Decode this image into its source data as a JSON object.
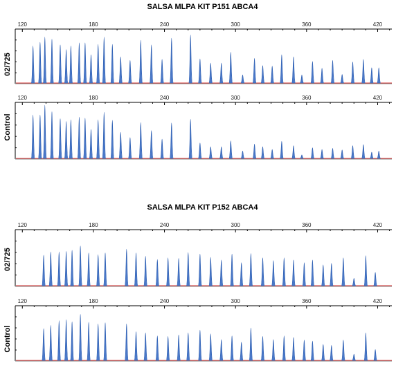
{
  "titles": [
    "SALSA MLPA KIT P151 ABCA4",
    "SALSA MLPA KIT P152 ABCA4"
  ],
  "colors": {
    "peak": "#4a78c8",
    "peak_edge": "#2a5cb0",
    "baseline": "#d83030",
    "axis": "#000000"
  },
  "chart_data": [
    {
      "type": "line",
      "panel_label": "02/725",
      "xlabel": "",
      "ylabel": "02/725",
      "xlim": [
        114,
        432
      ],
      "ylim": [
        0,
        100
      ],
      "xticks": [
        120,
        180,
        240,
        300,
        360,
        420
      ],
      "grid": false,
      "peaks": [
        {
          "x": 129,
          "y": 73
        },
        {
          "x": 135,
          "y": 80
        },
        {
          "x": 139,
          "y": 90
        },
        {
          "x": 145,
          "y": 86
        },
        {
          "x": 152,
          "y": 75
        },
        {
          "x": 157,
          "y": 66
        },
        {
          "x": 161,
          "y": 73
        },
        {
          "x": 168,
          "y": 79
        },
        {
          "x": 173,
          "y": 79
        },
        {
          "x": 178,
          "y": 56
        },
        {
          "x": 184,
          "y": 76
        },
        {
          "x": 189,
          "y": 90
        },
        {
          "x": 196,
          "y": 76
        },
        {
          "x": 203,
          "y": 52
        },
        {
          "x": 211,
          "y": 45
        },
        {
          "x": 220,
          "y": 84
        },
        {
          "x": 229,
          "y": 75
        },
        {
          "x": 238,
          "y": 47
        },
        {
          "x": 246,
          "y": 88
        },
        {
          "x": 262,
          "y": 94
        },
        {
          "x": 270,
          "y": 48
        },
        {
          "x": 279,
          "y": 40
        },
        {
          "x": 288,
          "y": 40
        },
        {
          "x": 296,
          "y": 61
        },
        {
          "x": 306,
          "y": 17
        },
        {
          "x": 316,
          "y": 49
        },
        {
          "x": 323,
          "y": 35
        },
        {
          "x": 331,
          "y": 34
        },
        {
          "x": 339,
          "y": 56
        },
        {
          "x": 349,
          "y": 52
        },
        {
          "x": 356,
          "y": 17
        },
        {
          "x": 365,
          "y": 43
        },
        {
          "x": 373,
          "y": 30
        },
        {
          "x": 382,
          "y": 45
        },
        {
          "x": 390,
          "y": 18
        },
        {
          "x": 399,
          "y": 42
        },
        {
          "x": 408,
          "y": 47
        },
        {
          "x": 415,
          "y": 31
        },
        {
          "x": 421,
          "y": 31
        }
      ]
    },
    {
      "type": "line",
      "panel_label": "Control",
      "xlabel": "",
      "ylabel": "Control",
      "xlim": [
        114,
        432
      ],
      "ylim": [
        0,
        100
      ],
      "xticks": [
        120,
        180,
        240,
        300,
        360,
        420
      ],
      "grid": false,
      "peaks": [
        {
          "x": 129,
          "y": 82
        },
        {
          "x": 135,
          "y": 82
        },
        {
          "x": 139,
          "y": 100
        },
        {
          "x": 145,
          "y": 88
        },
        {
          "x": 152,
          "y": 75
        },
        {
          "x": 157,
          "y": 70
        },
        {
          "x": 161,
          "y": 73
        },
        {
          "x": 168,
          "y": 78
        },
        {
          "x": 173,
          "y": 76
        },
        {
          "x": 178,
          "y": 55
        },
        {
          "x": 184,
          "y": 73
        },
        {
          "x": 189,
          "y": 87
        },
        {
          "x": 196,
          "y": 72
        },
        {
          "x": 203,
          "y": 50
        },
        {
          "x": 211,
          "y": 40
        },
        {
          "x": 220,
          "y": 68
        },
        {
          "x": 229,
          "y": 53
        },
        {
          "x": 238,
          "y": 37
        },
        {
          "x": 246,
          "y": 67
        },
        {
          "x": 262,
          "y": 74
        },
        {
          "x": 270,
          "y": 30
        },
        {
          "x": 279,
          "y": 23
        },
        {
          "x": 288,
          "y": 23
        },
        {
          "x": 296,
          "y": 34
        },
        {
          "x": 306,
          "y": 15
        },
        {
          "x": 316,
          "y": 28
        },
        {
          "x": 323,
          "y": 23
        },
        {
          "x": 331,
          "y": 18
        },
        {
          "x": 339,
          "y": 33
        },
        {
          "x": 349,
          "y": 25
        },
        {
          "x": 356,
          "y": 8
        },
        {
          "x": 365,
          "y": 21
        },
        {
          "x": 373,
          "y": 18
        },
        {
          "x": 382,
          "y": 20
        },
        {
          "x": 390,
          "y": 17
        },
        {
          "x": 399,
          "y": 25
        },
        {
          "x": 408,
          "y": 27
        },
        {
          "x": 415,
          "y": 13
        },
        {
          "x": 421,
          "y": 15
        }
      ]
    },
    {
      "type": "line",
      "panel_label": "02/725",
      "xlabel": "",
      "ylabel": "02/725",
      "xlim": [
        114,
        432
      ],
      "ylim": [
        0,
        100
      ],
      "xticks": [
        120,
        180,
        240,
        300,
        360,
        420
      ],
      "grid": false,
      "peaks": [
        {
          "x": 138,
          "y": 58
        },
        {
          "x": 144,
          "y": 64
        },
        {
          "x": 151,
          "y": 64
        },
        {
          "x": 157,
          "y": 65
        },
        {
          "x": 162,
          "y": 67
        },
        {
          "x": 169,
          "y": 75
        },
        {
          "x": 176,
          "y": 62
        },
        {
          "x": 184,
          "y": 59
        },
        {
          "x": 190,
          "y": 62
        },
        {
          "x": 208,
          "y": 69
        },
        {
          "x": 216,
          "y": 62
        },
        {
          "x": 224,
          "y": 56
        },
        {
          "x": 234,
          "y": 50
        },
        {
          "x": 243,
          "y": 53
        },
        {
          "x": 252,
          "y": 52
        },
        {
          "x": 260,
          "y": 63
        },
        {
          "x": 270,
          "y": 60
        },
        {
          "x": 279,
          "y": 54
        },
        {
          "x": 288,
          "y": 49
        },
        {
          "x": 297,
          "y": 60
        },
        {
          "x": 305,
          "y": 44
        },
        {
          "x": 313,
          "y": 61
        },
        {
          "x": 323,
          "y": 53
        },
        {
          "x": 332,
          "y": 48
        },
        {
          "x": 341,
          "y": 53
        },
        {
          "x": 349,
          "y": 49
        },
        {
          "x": 358,
          "y": 44
        },
        {
          "x": 365,
          "y": 49
        },
        {
          "x": 374,
          "y": 40
        },
        {
          "x": 381,
          "y": 43
        },
        {
          "x": 391,
          "y": 53
        },
        {
          "x": 400,
          "y": 15
        },
        {
          "x": 410,
          "y": 57
        },
        {
          "x": 418,
          "y": 26
        }
      ]
    },
    {
      "type": "line",
      "panel_label": "Control",
      "xlabel": "",
      "ylabel": "Control",
      "xlim": [
        114,
        432
      ],
      "ylim": [
        0,
        100
      ],
      "xticks": [
        120,
        180,
        240,
        300,
        360,
        420
      ],
      "grid": false,
      "peaks": [
        {
          "x": 138,
          "y": 62
        },
        {
          "x": 144,
          "y": 68
        },
        {
          "x": 151,
          "y": 77
        },
        {
          "x": 157,
          "y": 79
        },
        {
          "x": 162,
          "y": 75
        },
        {
          "x": 169,
          "y": 89
        },
        {
          "x": 176,
          "y": 74
        },
        {
          "x": 184,
          "y": 71
        },
        {
          "x": 190,
          "y": 73
        },
        {
          "x": 208,
          "y": 71
        },
        {
          "x": 216,
          "y": 56
        },
        {
          "x": 224,
          "y": 54
        },
        {
          "x": 234,
          "y": 48
        },
        {
          "x": 243,
          "y": 47
        },
        {
          "x": 252,
          "y": 50
        },
        {
          "x": 260,
          "y": 54
        },
        {
          "x": 270,
          "y": 59
        },
        {
          "x": 279,
          "y": 52
        },
        {
          "x": 288,
          "y": 41
        },
        {
          "x": 297,
          "y": 48
        },
        {
          "x": 305,
          "y": 36
        },
        {
          "x": 313,
          "y": 63
        },
        {
          "x": 323,
          "y": 47
        },
        {
          "x": 332,
          "y": 41
        },
        {
          "x": 341,
          "y": 48
        },
        {
          "x": 349,
          "y": 45
        },
        {
          "x": 358,
          "y": 40
        },
        {
          "x": 365,
          "y": 38
        },
        {
          "x": 374,
          "y": 32
        },
        {
          "x": 381,
          "y": 30
        },
        {
          "x": 391,
          "y": 40
        },
        {
          "x": 400,
          "y": 13
        },
        {
          "x": 410,
          "y": 54
        },
        {
          "x": 418,
          "y": 22
        }
      ]
    }
  ]
}
